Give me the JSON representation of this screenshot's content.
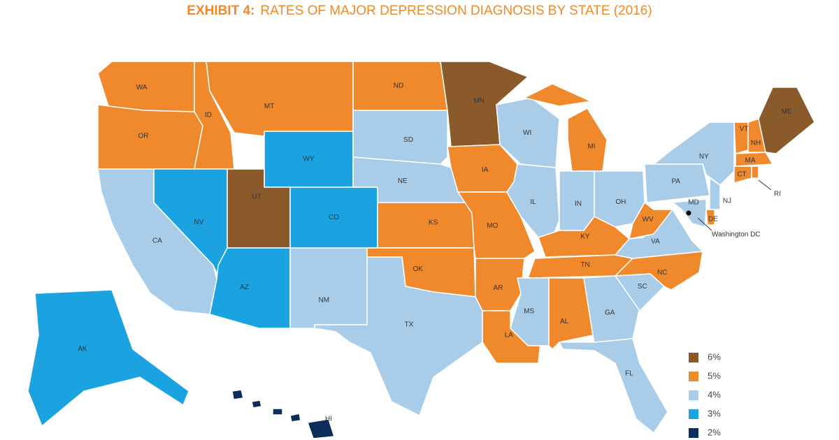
{
  "header": {
    "exhibit": "EXHIBIT 4:",
    "title": "RATES OF MAJOR DEPRESSION DIAGNOSIS BY STATE (2016)"
  },
  "legend": [
    {
      "value": 6,
      "label": "6%",
      "color": "#8b5a2b"
    },
    {
      "value": 5,
      "label": "5%",
      "color": "#f0892b"
    },
    {
      "value": 4,
      "label": "4%",
      "color": "#a9cde9"
    },
    {
      "value": 3,
      "label": "3%",
      "color": "#1aa3e0"
    },
    {
      "value": 2,
      "label": "2%",
      "color": "#0b2d5a"
    }
  ],
  "states": [
    {
      "label": "WA",
      "value": 5
    },
    {
      "label": "OR",
      "value": 5
    },
    {
      "label": "ID",
      "value": 5
    },
    {
      "label": "MT",
      "value": 5
    },
    {
      "label": "WY",
      "value": 3
    },
    {
      "label": "UT",
      "value": 6
    },
    {
      "label": "NV",
      "value": 3
    },
    {
      "label": "CA",
      "value": 4
    },
    {
      "label": "AZ",
      "value": 3
    },
    {
      "label": "NM",
      "value": 4
    },
    {
      "label": "CO",
      "value": 3
    },
    {
      "label": "ND",
      "value": 5
    },
    {
      "label": "SD",
      "value": 4
    },
    {
      "label": "NE",
      "value": 4
    },
    {
      "label": "KS",
      "value": 5
    },
    {
      "label": "OK",
      "value": 5
    },
    {
      "label": "TX",
      "value": 4
    },
    {
      "label": "MN",
      "value": 6
    },
    {
      "label": "IA",
      "value": 5
    },
    {
      "label": "MO",
      "value": 5
    },
    {
      "label": "AR",
      "value": 5
    },
    {
      "label": "LA",
      "value": 5
    },
    {
      "label": "WI",
      "value": 4
    },
    {
      "label": "IL",
      "value": 4
    },
    {
      "label": "MI",
      "value": 5
    },
    {
      "label": "IN",
      "value": 4
    },
    {
      "label": "OH",
      "value": 4
    },
    {
      "label": "KY",
      "value": 5
    },
    {
      "label": "TN",
      "value": 5
    },
    {
      "label": "MS",
      "value": 4
    },
    {
      "label": "AL",
      "value": 5
    },
    {
      "label": "GA",
      "value": 4
    },
    {
      "label": "FL",
      "value": 4
    },
    {
      "label": "SC",
      "value": 4
    },
    {
      "label": "NC",
      "value": 5
    },
    {
      "label": "VA",
      "value": 4
    },
    {
      "label": "WV",
      "value": 5
    },
    {
      "label": "PA",
      "value": 4
    },
    {
      "label": "NY",
      "value": 4
    },
    {
      "label": "VT",
      "value": 5
    },
    {
      "label": "NH",
      "value": 5
    },
    {
      "label": "ME",
      "value": 6
    },
    {
      "label": "MA",
      "value": 5
    },
    {
      "label": "CT",
      "value": 5
    },
    {
      "label": "RI",
      "value": 5
    },
    {
      "label": "NJ",
      "value": 4
    },
    {
      "label": "DE",
      "value": 5
    },
    {
      "label": "MD",
      "value": 4
    },
    {
      "label": "AK",
      "value": 3
    },
    {
      "label": "HI",
      "value": 2
    }
  ],
  "dc_label": "Washington DC"
}
